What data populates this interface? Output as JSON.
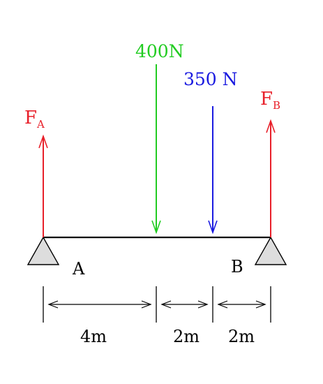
{
  "colors": {
    "reaction": "#e8202a",
    "load1": "#22cc22",
    "load2": "#1a1ae0",
    "beam": "#000000",
    "support_fill": "#dddddd"
  },
  "forces": {
    "fa": {
      "main": "F",
      "sub": "A"
    },
    "fb": {
      "main": "F",
      "sub": "B"
    },
    "load1": {
      "label": "400N"
    },
    "load2": {
      "label": "350 N"
    }
  },
  "supports": {
    "a": {
      "label": "A"
    },
    "b": {
      "label": "B"
    }
  },
  "dimensions": [
    {
      "label": "4m"
    },
    {
      "label": "2m"
    },
    {
      "label": "2m"
    }
  ]
}
